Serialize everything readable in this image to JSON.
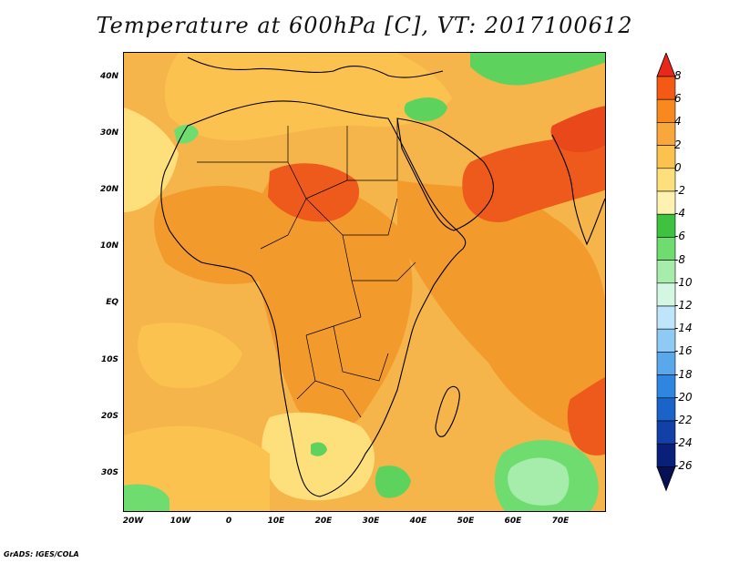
{
  "title": "Temperature at 600hPa [C], VT: 2017100612",
  "credit": "GrADS: IGES/COLA",
  "lat_labels": [
    "40N",
    "30N",
    "20N",
    "10N",
    "EQ",
    "10S",
    "20S",
    "30S"
  ],
  "lon_labels": [
    "20W",
    "10W",
    "0",
    "10E",
    "20E",
    "30E",
    "40E",
    "50E",
    "60E",
    "70E"
  ],
  "colorbar": {
    "labels": [
      "8",
      "6",
      "4",
      "2",
      "0",
      "-2",
      "-4",
      "-6",
      "-8",
      "-10",
      "-12",
      "-14",
      "-16",
      "-18",
      "-20",
      "-22",
      "-24",
      "-26"
    ],
    "colors": [
      "#e8281a",
      "#f55a14",
      "#f8891f",
      "#f9a63a",
      "#fbc24f",
      "#fde07c",
      "#fff2b0",
      "#3fc23f",
      "#6edc6e",
      "#a6ecaa",
      "#d4f7e4",
      "#bfe5fb",
      "#8fcaf5",
      "#5aa8ec",
      "#2f86e0",
      "#1a63c8",
      "#1040a8",
      "#0a1f7a",
      "#061055"
    ]
  },
  "map": {
    "shading": "Temperature at 600hPa",
    "colors": {
      "ocean_base": "#f5b54a",
      "warm": "#f39a2c",
      "hot": "#ee5a1c",
      "cool": "#fde07c",
      "green": "#5dd35d"
    }
  }
}
